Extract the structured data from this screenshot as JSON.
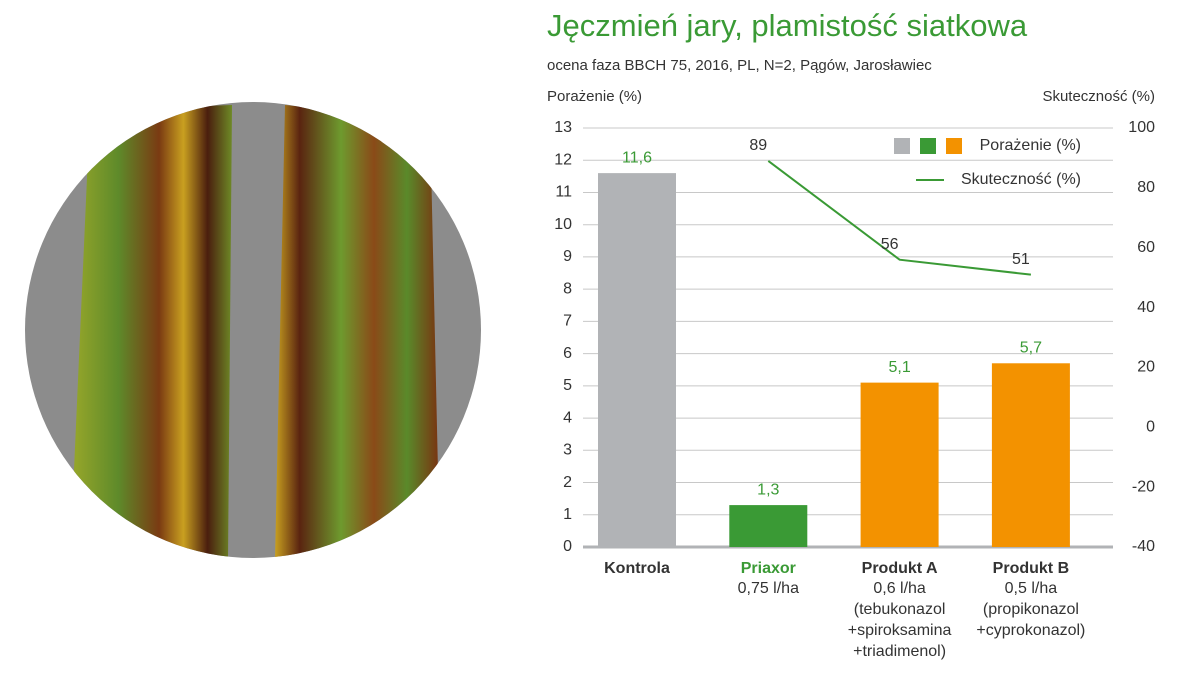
{
  "chart_data": {
    "type": "bar",
    "title": "Jęczmień jary, plamistość siatkowa",
    "subtitle": "ocena faza BBCH 75, 2016, PL, N=2, Pągów, Jarosławiec",
    "y_label": "Porażenie (%)",
    "y2_label": "Skuteczność (%)",
    "categories": [
      "Kontrola",
      "Priaxor",
      "Produkt A",
      "Produkt B"
    ],
    "category_label_colors": [
      "#333333",
      "#3a9a35",
      "#333333",
      "#333333"
    ],
    "category_details": [
      [],
      [
        "0,75 l/ha"
      ],
      [
        "0,6 l/ha",
        "(tebukonazol",
        "+spiroksamina",
        "+triadimenol)"
      ],
      [
        "0,5 l/ha",
        "(propikonazol",
        "+cyprokonazol)"
      ]
    ],
    "series": [
      {
        "name": "Porażenie (%)",
        "type": "bar",
        "colors": [
          "#b1b3b6",
          "#3a9a35",
          "#f39200",
          "#f39200"
        ],
        "values": [
          11.6,
          1.3,
          5.1,
          5.7
        ],
        "value_labels": [
          "11,6",
          "1,3",
          "5,1",
          "5,7"
        ],
        "label_color": "#3a9a35"
      },
      {
        "name": "Skuteczność (%)",
        "type": "line",
        "axis": "y2",
        "color": "#3a9a35",
        "values": [
          null,
          89,
          56,
          51
        ]
      }
    ],
    "ylim": [
      0,
      13
    ],
    "yticks": [
      0,
      1,
      2,
      3,
      4,
      5,
      6,
      7,
      8,
      9,
      10,
      11,
      12,
      13
    ],
    "y2lim": [
      -40,
      100
    ],
    "y2ticks": [
      -40,
      -20,
      0,
      20,
      40,
      60,
      80,
      100
    ],
    "grid": true,
    "legend": "upper right"
  }
}
